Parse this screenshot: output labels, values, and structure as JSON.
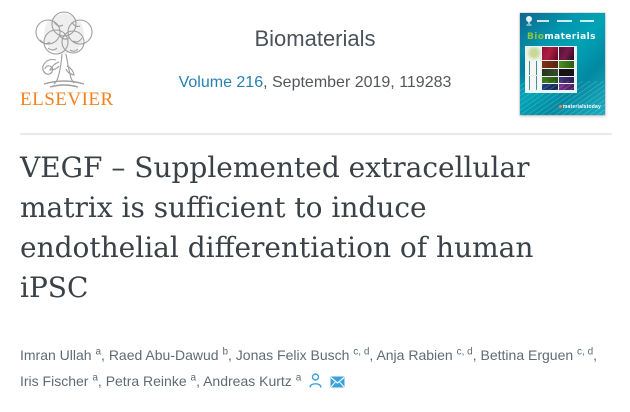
{
  "publisher": {
    "name": "ELSEVIER",
    "logo_icon": "elsevier-tree-icon"
  },
  "journal": {
    "title": "Biomaterials",
    "volume_link": "Volume 216",
    "issue_info": ", September 2019, 119283"
  },
  "article": {
    "title_lines": [
      "VEGF – Supplemented extracellular",
      "matrix is sufficient to induce",
      "endothelial differentiation of human",
      "iPSC"
    ],
    "authors": [
      {
        "name": "Imran Ullah",
        "sup": "a"
      },
      {
        "name": "Raed Abu-Dawud",
        "sup": "b"
      },
      {
        "name": "Jonas Felix Busch",
        "sup": "c, d"
      },
      {
        "name": "Anja Rabien",
        "sup": "c, d"
      },
      {
        "name": "Bettina Erguen",
        "sup": "c, d"
      },
      {
        "name": "Iris Fischer",
        "sup": "a"
      },
      {
        "name": "Petra Reinke",
        "sup": "a"
      },
      {
        "name": "Andreas Kurtz",
        "sup": "a"
      }
    ],
    "author_icons": [
      "person-icon",
      "envelope-icon"
    ]
  },
  "cover": {
    "title_bio": "Bio",
    "title_rest": "materials",
    "brand": "materialstoday"
  },
  "colors": {
    "elsevier_orange": "#f48120",
    "link_blue": "#2580b3",
    "icon_blue": "#3aa2d9",
    "title_gray": "#3a4147",
    "author_gray": "#5f6b76",
    "cover_teal": "#00a3b5",
    "cover_green": "#8dc63f"
  }
}
